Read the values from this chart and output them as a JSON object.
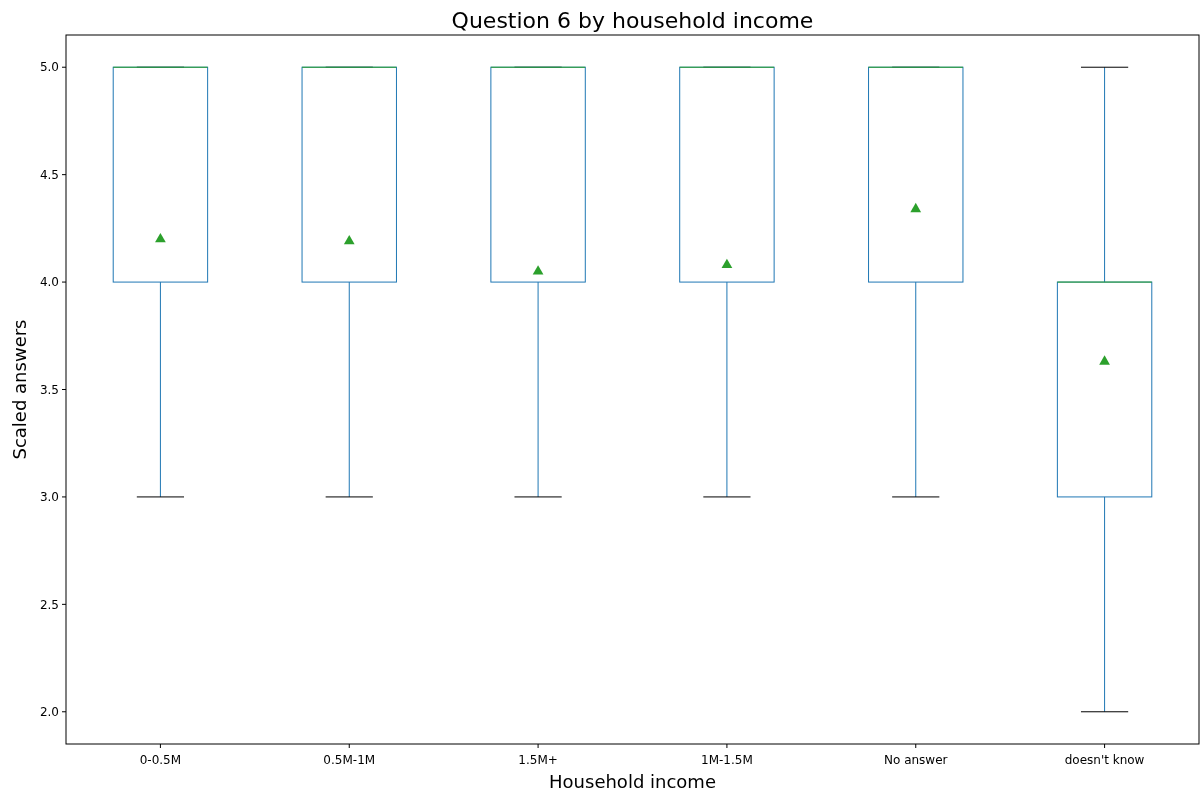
{
  "chart_data": {
    "type": "box",
    "title": "Question 6 by household income",
    "xlabel": "Household income",
    "ylabel": "Scaled answers",
    "categories": [
      "0-0.5M",
      "0.5M-1M",
      "1.5M+",
      "1M-1.5M",
      "No answer",
      "doesn't know"
    ],
    "series": [
      {
        "color": "#1f77b4",
        "boxes": [
          {
            "low": 3,
            "q1": 4,
            "median": 5,
            "q3": 5,
            "high": 5,
            "mean": 4.2
          },
          {
            "low": 3,
            "q1": 4,
            "median": 5,
            "q3": 5,
            "high": 5,
            "mean": 4.19
          },
          {
            "low": 3,
            "q1": 4,
            "median": 5,
            "q3": 5,
            "high": 5,
            "mean": 4.05
          },
          {
            "low": 3,
            "q1": 4,
            "median": 5,
            "q3": 5,
            "high": 5,
            "mean": 4.08
          },
          {
            "low": 3,
            "q1": 4,
            "median": 5,
            "q3": 5,
            "high": 5,
            "mean": 4.34
          },
          {
            "low": 2,
            "q1": 3,
            "median": 4,
            "q3": 4,
            "high": 5,
            "mean": 3.63
          }
        ]
      }
    ],
    "ylim": [
      1.85,
      5.15
    ],
    "yticks": [
      {
        "value": 2,
        "label": "2.0"
      },
      {
        "value": 2.5,
        "label": "2.5"
      },
      {
        "value": 3,
        "label": "3.0"
      },
      {
        "value": 3.5,
        "label": "3.5"
      },
      {
        "value": 4,
        "label": "4.0"
      },
      {
        "value": 4.5,
        "label": "4.5"
      },
      {
        "value": 5,
        "label": "5.0"
      }
    ],
    "marker": "triangle"
  }
}
